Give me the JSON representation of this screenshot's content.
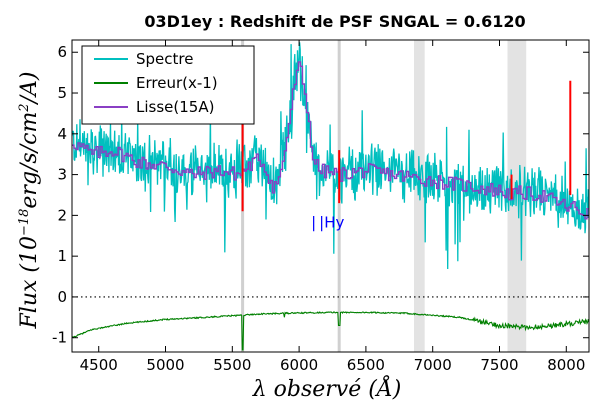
{
  "chart_data": {
    "type": "line",
    "title": "03D1ey : Redshift de PSF SNGAL = 0.6120",
    "xlabel": "λ observé (Å)",
    "ylabel": "Flux (10^-18 erg/s/cm^2/A)",
    "xlim": [
      4300,
      8170
    ],
    "ylim": [
      -1.35,
      6.3
    ],
    "x_ticks": [
      4500,
      5000,
      5500,
      6000,
      6500,
      7000,
      7500,
      8000
    ],
    "y_ticks": [
      -1,
      0,
      1,
      2,
      3,
      4,
      5,
      6
    ],
    "grid": false,
    "legend_position": "top-left",
    "legend": [
      "Spectre",
      "Erreur(x-1)",
      "Lisse(15A)"
    ],
    "series": [
      {
        "name": "Spectre",
        "color": "#00bfbf"
      },
      {
        "name": "Erreur(x-1)",
        "color": "#008000"
      },
      {
        "name": "Lisse(15A)",
        "color": "#8a3fc4"
      }
    ],
    "smoothed_profile": {
      "x": [
        4300,
        4450,
        4600,
        4800,
        5000,
        5200,
        5400,
        5550,
        5620,
        5700,
        5750,
        5800,
        5850,
        5900,
        5960,
        6000,
        6050,
        6100,
        6150,
        6300,
        6500,
        6700,
        6900,
        7100,
        7300,
        7500,
        7600,
        7650,
        7800,
        7950,
        8000,
        8050,
        8100,
        8170
      ],
      "y": [
        3.8,
        3.5,
        3.6,
        3.3,
        3.2,
        3.0,
        3.1,
        3.0,
        3.2,
        3.4,
        3.1,
        2.7,
        2.9,
        3.8,
        5.2,
        5.7,
        4.8,
        3.4,
        3.1,
        3.0,
        3.1,
        3.0,
        2.9,
        2.8,
        2.7,
        2.6,
        2.5,
        2.55,
        2.5,
        2.3,
        2.2,
        2.2,
        2.1,
        2.0
      ]
    },
    "error_profile": {
      "x": [
        4300,
        4450,
        4700,
        5000,
        5300,
        5550,
        5700,
        5900,
        6200,
        6500,
        6800,
        7000,
        7200,
        7350,
        7500,
        7700,
        7900,
        8170
      ],
      "y": [
        -1.0,
        -0.8,
        -0.65,
        -0.55,
        -0.5,
        -0.45,
        -0.42,
        -0.4,
        -0.38,
        -0.38,
        -0.4,
        -0.45,
        -0.5,
        -0.6,
        -0.7,
        -0.75,
        -0.7,
        -0.6
      ]
    },
    "spectrum_noise_amplitude": 0.55,
    "sky_lines_x": [
      5577,
      6300
    ],
    "telluric_bands": [
      [
        6860,
        6940
      ],
      [
        7560,
        7700
      ]
    ],
    "red_markers": [
      {
        "x": 5577,
        "y": [
          2.1,
          6.1
        ]
      },
      {
        "x": 6300,
        "y": [
          2.3,
          3.6
        ]
      },
      {
        "x": 7590,
        "y": [
          2.4,
          3.0
        ]
      },
      {
        "x": 8030,
        "y": [
          2.5,
          5.3
        ]
      }
    ],
    "zero_line": 0,
    "annotations": [
      {
        "label": "Hγ",
        "text": "|Hy",
        "x": 6150,
        "y": 1.7
      },
      {
        "label": "",
        "text": "|",
        "x": 6090,
        "y": 1.7
      }
    ]
  }
}
